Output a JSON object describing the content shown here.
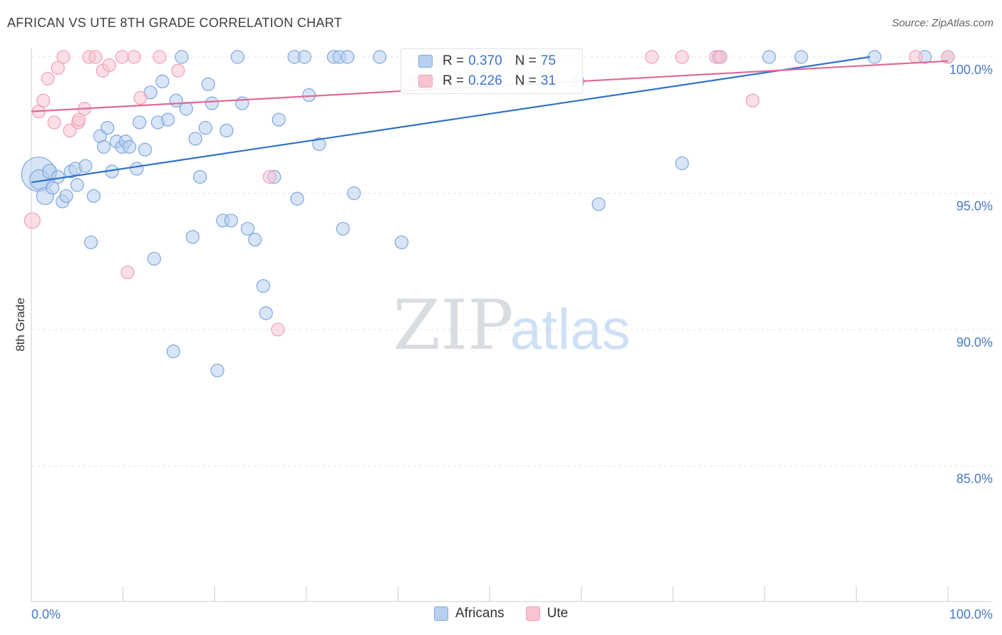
{
  "header": {
    "title": "AFRICAN VS UTE 8TH GRADE CORRELATION CHART",
    "source": "Source: ZipAtlas.com"
  },
  "watermark": {
    "zip": "ZIP",
    "atlas": "atlas"
  },
  "colors": {
    "africans_fill": "#b8d0f0",
    "africans_stroke": "#7ea6dc",
    "africans_line": "#2f72cc",
    "ute_fill": "#f8c4d2",
    "ute_stroke": "#ee9fb6",
    "ute_line": "#e06a94",
    "tick_text": "#4a78c4",
    "grid": "#e3e6eb"
  },
  "legend": {
    "africans": {
      "r_label": "R =",
      "r_value": "0.370",
      "n_label": "N =",
      "n_value": "75"
    },
    "ute": {
      "r_label": "R =",
      "r_value": "0.226",
      "n_label": "N =",
      "n_value": "31"
    }
  },
  "chart_data": {
    "type": "scatter",
    "title": "AFRICAN VS UTE 8TH GRADE CORRELATION CHART",
    "xlabel": "",
    "ylabel": "8th Grade",
    "xlim": [
      0,
      100
    ],
    "ylim": [
      80.5,
      100.7
    ],
    "x_tick_labels": {
      "0": "0.0%",
      "100": "100.0%"
    },
    "y_ticks": [
      85,
      90,
      95,
      100
    ],
    "y_tick_labels": [
      "85.0%",
      "90.0%",
      "95.0%",
      "100.0%"
    ],
    "grid": true,
    "legend_position": "bottom",
    "series": [
      {
        "name": "Africans",
        "trend": {
          "x0": 0,
          "y0": 95.4,
          "x1": 91.5,
          "y1": 100.0
        },
        "points": [
          [
            0.8,
            95.7,
            24
          ],
          [
            0.9,
            95.5,
            14
          ],
          [
            1.5,
            94.9,
            12
          ],
          [
            2.0,
            95.8,
            10
          ],
          [
            2.3,
            95.2,
            9
          ],
          [
            2.9,
            95.6,
            9
          ],
          [
            3.4,
            94.7,
            9
          ],
          [
            3.8,
            94.9,
            9
          ],
          [
            4.3,
            95.8,
            9
          ],
          [
            4.8,
            95.9,
            9
          ],
          [
            5.0,
            95.3,
            9
          ],
          [
            5.9,
            96.0,
            9
          ],
          [
            6.5,
            93.2,
            9
          ],
          [
            6.8,
            94.9,
            9
          ],
          [
            7.5,
            97.1,
            9
          ],
          [
            7.9,
            96.7,
            9
          ],
          [
            8.3,
            97.4,
            9
          ],
          [
            8.8,
            95.8,
            9
          ],
          [
            9.3,
            96.9,
            9
          ],
          [
            9.9,
            96.7,
            9
          ],
          [
            10.3,
            96.9,
            9
          ],
          [
            10.7,
            96.7,
            9
          ],
          [
            11.5,
            95.9,
            9
          ],
          [
            11.8,
            97.6,
            9
          ],
          [
            12.4,
            96.6,
            9
          ],
          [
            13.0,
            98.7,
            9
          ],
          [
            13.4,
            92.6,
            9
          ],
          [
            13.8,
            97.6,
            9
          ],
          [
            14.3,
            99.1,
            9
          ],
          [
            14.9,
            97.7,
            9
          ],
          [
            15.5,
            89.2,
            9
          ],
          [
            15.8,
            98.4,
            9
          ],
          [
            16.4,
            100.0,
            9
          ],
          [
            16.9,
            98.1,
            9
          ],
          [
            17.6,
            93.4,
            9
          ],
          [
            17.9,
            97.0,
            9
          ],
          [
            18.4,
            95.6,
            9
          ],
          [
            19.0,
            97.4,
            9
          ],
          [
            19.3,
            99.0,
            9
          ],
          [
            19.7,
            98.3,
            9
          ],
          [
            20.3,
            88.5,
            9
          ],
          [
            20.9,
            94.0,
            9
          ],
          [
            21.3,
            97.3,
            9
          ],
          [
            21.8,
            94.0,
            9
          ],
          [
            22.5,
            100.0,
            9
          ],
          [
            23.0,
            98.3,
            9
          ],
          [
            23.6,
            93.7,
            9
          ],
          [
            24.4,
            93.3,
            9
          ],
          [
            25.3,
            91.6,
            9
          ],
          [
            25.6,
            90.6,
            9
          ],
          [
            26.5,
            95.6,
            9
          ],
          [
            27.0,
            97.7,
            9
          ],
          [
            28.7,
            100.0,
            9
          ],
          [
            29.0,
            94.8,
            9
          ],
          [
            29.8,
            100.0,
            9
          ],
          [
            30.3,
            98.6,
            9
          ],
          [
            31.4,
            96.8,
            9
          ],
          [
            33.0,
            100.0,
            9
          ],
          [
            33.6,
            100.0,
            9
          ],
          [
            34.0,
            93.7,
            9
          ],
          [
            34.5,
            100.0,
            9
          ],
          [
            35.2,
            95.0,
            9
          ],
          [
            38.0,
            100.0,
            9
          ],
          [
            40.4,
            93.2,
            9
          ],
          [
            42.0,
            99.1,
            9
          ],
          [
            57.0,
            100.0,
            9
          ],
          [
            59.6,
            99.1,
            9
          ],
          [
            61.9,
            94.6,
            9
          ],
          [
            71.0,
            96.1,
            9
          ],
          [
            75.0,
            100.0,
            9
          ],
          [
            80.5,
            100.0,
            9
          ],
          [
            84.0,
            100.0,
            9
          ],
          [
            92.0,
            100.0,
            9
          ],
          [
            97.5,
            100.0,
            9
          ],
          [
            100.0,
            100.0,
            9
          ]
        ]
      },
      {
        "name": "Ute",
        "trend": {
          "x0": 0,
          "y0": 98.0,
          "x1": 100,
          "y1": 99.85
        },
        "points": [
          [
            0.1,
            94.0,
            11
          ],
          [
            0.8,
            98.0,
            9
          ],
          [
            1.3,
            98.4,
            9
          ],
          [
            1.8,
            99.2,
            9
          ],
          [
            2.5,
            97.6,
            9
          ],
          [
            2.9,
            99.6,
            9
          ],
          [
            3.5,
            100.0,
            9
          ],
          [
            4.2,
            97.3,
            9
          ],
          [
            5.1,
            97.6,
            9
          ],
          [
            5.2,
            97.7,
            9
          ],
          [
            5.8,
            98.1,
            9
          ],
          [
            6.3,
            100.0,
            9
          ],
          [
            7.0,
            100.0,
            9
          ],
          [
            7.8,
            99.5,
            9
          ],
          [
            8.5,
            99.7,
            9
          ],
          [
            9.9,
            100.0,
            9
          ],
          [
            10.5,
            92.1,
            9
          ],
          [
            11.2,
            100.0,
            9
          ],
          [
            11.9,
            98.5,
            9
          ],
          [
            14.0,
            100.0,
            9
          ],
          [
            16.0,
            99.5,
            9
          ],
          [
            26.0,
            95.6,
            9
          ],
          [
            26.9,
            90.0,
            9
          ],
          [
            53.0,
            100.0,
            9
          ],
          [
            67.7,
            100.0,
            9
          ],
          [
            71.0,
            100.0,
            9
          ],
          [
            74.7,
            100.0,
            9
          ],
          [
            75.2,
            100.0,
            9
          ],
          [
            78.7,
            98.4,
            9
          ],
          [
            96.5,
            100.0,
            9
          ],
          [
            100.0,
            100.0,
            9
          ]
        ]
      }
    ]
  },
  "bottom_legend": {
    "africans": "Africans",
    "ute": "Ute"
  }
}
